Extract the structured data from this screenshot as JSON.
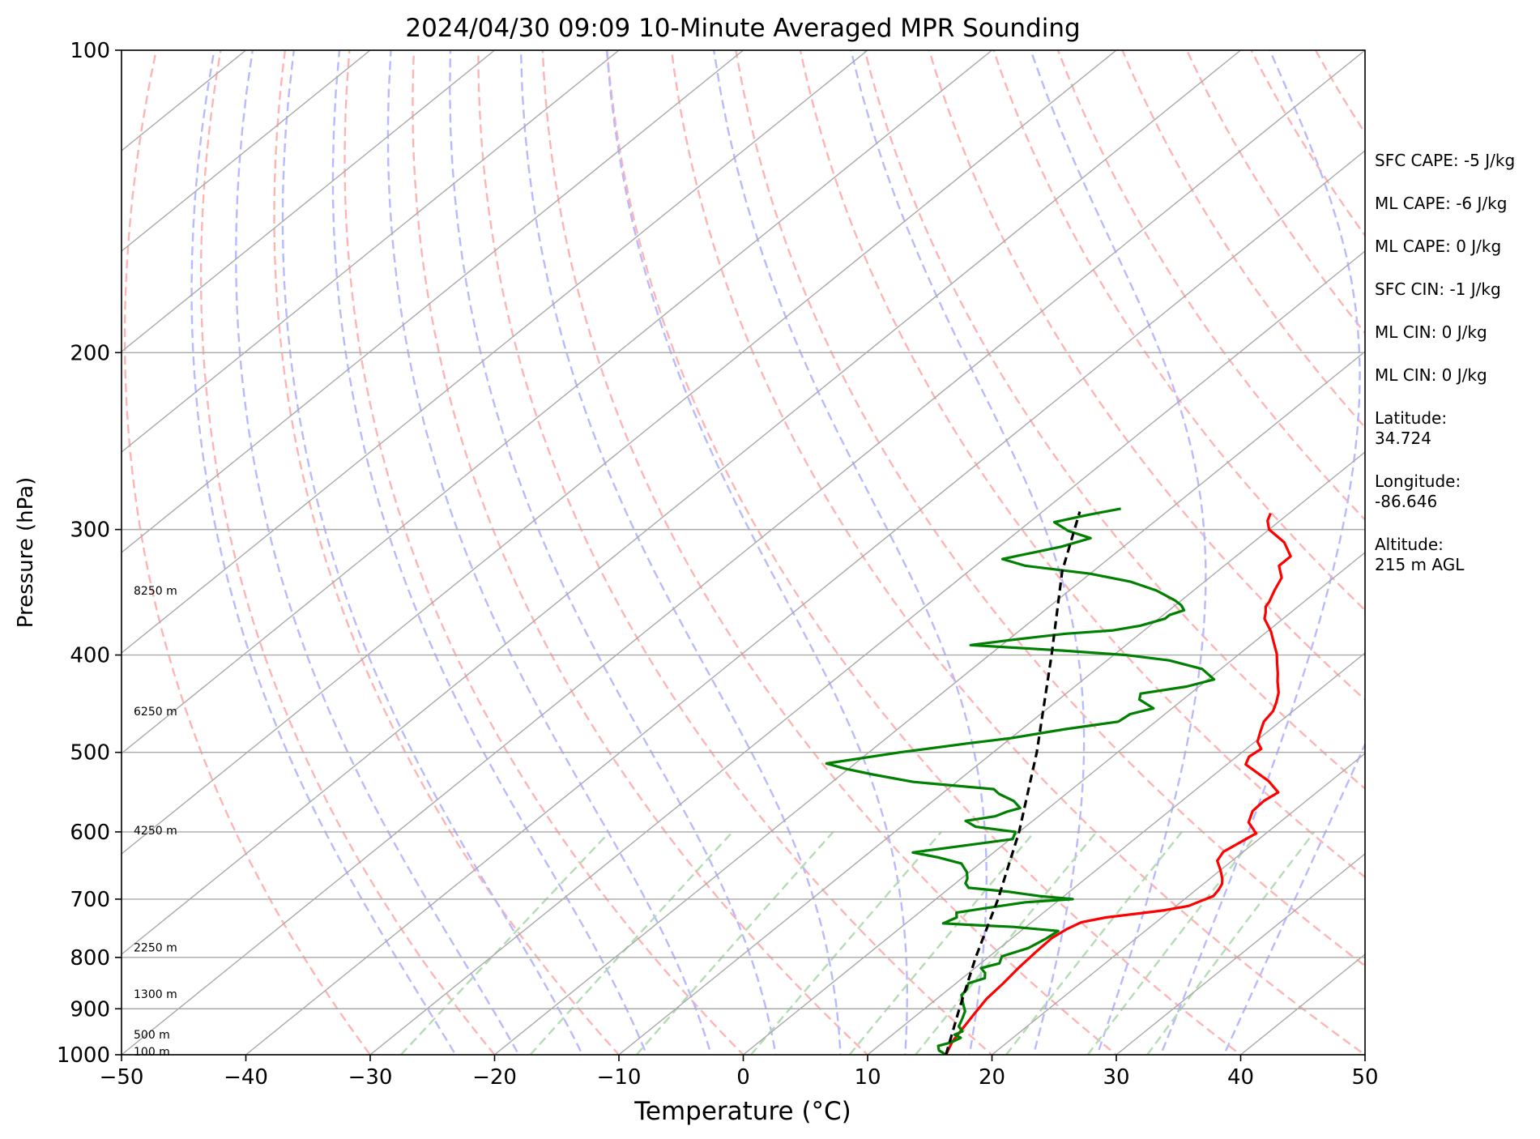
{
  "chart_data": {
    "type": "line",
    "title": "2024/04/30 09:09 10-Minute Averaged MPR Sounding",
    "xlabel": "Temperature (°C)",
    "ylabel": "Pressure (hPa)",
    "xlim": [
      -50,
      50
    ],
    "ylim": [
      1000,
      100
    ],
    "y_scale": "log",
    "skew": "skew-T",
    "grid": true,
    "x_ticks": [
      "−50",
      "−40",
      "−30",
      "−20",
      "−10",
      "0",
      "10",
      "20",
      "30",
      "40",
      "50"
    ],
    "x_tick_values": [
      -50,
      -40,
      -30,
      -20,
      -10,
      0,
      10,
      20,
      30,
      40,
      50
    ],
    "y_ticks": [
      "100",
      "200",
      "300",
      "400",
      "500",
      "600",
      "700",
      "800",
      "900",
      "1000"
    ],
    "y_tick_values": [
      100,
      200,
      300,
      400,
      500,
      600,
      700,
      800,
      900,
      1000
    ],
    "height_labels": [
      {
        "text": "8250 m",
        "p": 345
      },
      {
        "text": "6250 m",
        "p": 455
      },
      {
        "text": "4250 m",
        "p": 598
      },
      {
        "text": "2250 m",
        "p": 782
      },
      {
        "text": "1300 m",
        "p": 870
      },
      {
        "text": "500 m",
        "p": 955
      },
      {
        "text": "100 m",
        "p": 993
      }
    ],
    "series": [
      {
        "color": "#ff0000",
        "points": [
          [
            16.3,
            1000
          ],
          [
            15.5,
            970
          ],
          [
            15.0,
            940
          ],
          [
            14.5,
            910
          ],
          [
            14.0,
            880
          ],
          [
            13.8,
            850
          ],
          [
            13.5,
            820
          ],
          [
            13.3,
            790
          ],
          [
            13.2,
            765
          ],
          [
            13.5,
            750
          ],
          [
            14.0,
            738
          ],
          [
            15.5,
            730
          ],
          [
            17.5,
            724
          ],
          [
            19.5,
            718
          ],
          [
            21.0,
            711
          ],
          [
            21.5,
            703
          ],
          [
            22.0,
            695
          ],
          [
            21.8,
            685
          ],
          [
            21.5,
            676
          ],
          [
            21.0,
            668
          ],
          [
            20.0,
            655
          ],
          [
            18.8,
            641
          ],
          [
            18.4,
            628
          ],
          [
            18.8,
            615
          ],
          [
            19.2,
            602
          ],
          [
            17.5,
            587
          ],
          [
            16.7,
            572
          ],
          [
            16.6,
            559
          ],
          [
            16.9,
            548
          ],
          [
            15.0,
            534
          ],
          [
            11.5,
            514
          ],
          [
            11.0,
            505
          ],
          [
            11.2,
            496
          ],
          [
            10.2,
            488
          ],
          [
            9.5,
            478
          ],
          [
            8.7,
            466
          ],
          [
            8.4,
            455
          ],
          [
            7.8,
            446
          ],
          [
            7.0,
            436
          ],
          [
            5.8,
            425
          ],
          [
            5.0,
            417
          ],
          [
            4.0,
            408
          ],
          [
            3.0,
            399
          ],
          [
            1.8,
            390
          ],
          [
            0.3,
            379
          ],
          [
            -1.5,
            368
          ],
          [
            -2.0,
            363
          ],
          [
            -2.6,
            358
          ],
          [
            -2.8,
            354
          ],
          [
            -3.5,
            345
          ],
          [
            -4.2,
            335
          ],
          [
            -5.6,
            326
          ],
          [
            -5.6,
            319
          ],
          [
            -7.5,
            309
          ],
          [
            -10.0,
            300
          ],
          [
            -11.0,
            294
          ],
          [
            -11.5,
            289
          ]
        ]
      },
      {
        "color": "#008000",
        "points": [
          [
            16.3,
            1000
          ],
          [
            15.3,
            990
          ],
          [
            14.8,
            980
          ],
          [
            15.5,
            972
          ],
          [
            15.8,
            962
          ],
          [
            15.0,
            955
          ],
          [
            15.3,
            948
          ],
          [
            14.5,
            937
          ],
          [
            14.0,
            920
          ],
          [
            13.5,
            905
          ],
          [
            12.5,
            888
          ],
          [
            11.6,
            872
          ],
          [
            11.5,
            862
          ],
          [
            11.0,
            849
          ],
          [
            11.8,
            839
          ],
          [
            11.3,
            829
          ],
          [
            10.5,
            820
          ],
          [
            11.5,
            811
          ],
          [
            11.0,
            798
          ],
          [
            12.3,
            783
          ],
          [
            12.8,
            766
          ],
          [
            13.0,
            753
          ],
          [
            9.0,
            746
          ],
          [
            5.8,
            743
          ],
          [
            3.0,
            740
          ],
          [
            3.5,
            730
          ],
          [
            3.0,
            722
          ],
          [
            4.8,
            715
          ],
          [
            7.5,
            705
          ],
          [
            11.0,
            700
          ],
          [
            8.0,
            695
          ],
          [
            5.0,
            688
          ],
          [
            1.5,
            682
          ],
          [
            0.8,
            675
          ],
          [
            0.5,
            668
          ],
          [
            -0.2,
            658
          ],
          [
            -1.0,
            650
          ],
          [
            -1.5,
            645
          ],
          [
            -4.0,
            636
          ],
          [
            -6.5,
            629
          ],
          [
            -3.0,
            619
          ],
          [
            0.2,
            610
          ],
          [
            -0.3,
            600
          ],
          [
            -4.0,
            593
          ],
          [
            -5.4,
            585
          ],
          [
            -3.5,
            579
          ],
          [
            -3.0,
            573
          ],
          [
            -2.3,
            568
          ],
          [
            -3.5,
            559
          ],
          [
            -5.4,
            550
          ],
          [
            -6.3,
            544
          ],
          [
            -13.5,
            535
          ],
          [
            -17.5,
            526
          ],
          [
            -20.3,
            519
          ],
          [
            -22.3,
            513
          ],
          [
            -17.5,
            500
          ],
          [
            -13.0,
            490
          ],
          [
            -10.0,
            484
          ],
          [
            -6.5,
            474
          ],
          [
            -3.0,
            466
          ],
          [
            -2.8,
            458
          ],
          [
            -1.5,
            452
          ],
          [
            -3.5,
            443
          ],
          [
            -4.0,
            437
          ],
          [
            -1.0,
            430
          ],
          [
            0.5,
            423
          ],
          [
            -1.5,
            413
          ],
          [
            -5.0,
            405
          ],
          [
            -9.0,
            400
          ],
          [
            -14.5,
            396
          ],
          [
            -22.5,
            391
          ],
          [
            -19.5,
            386
          ],
          [
            -16.0,
            381
          ],
          [
            -12.5,
            378
          ],
          [
            -10.8,
            374
          ],
          [
            -9.5,
            368
          ],
          [
            -9.5,
            365
          ],
          [
            -8.8,
            361
          ],
          [
            -9.5,
            357
          ],
          [
            -10.5,
            353
          ],
          [
            -13.0,
            345
          ],
          [
            -16.0,
            338
          ],
          [
            -20.0,
            332
          ],
          [
            -26.0,
            326
          ],
          [
            -28.5,
            321
          ],
          [
            -25.0,
            312
          ],
          [
            -23.5,
            306
          ],
          [
            -26.0,
            301
          ],
          [
            -28.0,
            295
          ],
          [
            -26.0,
            290
          ],
          [
            -24.0,
            286
          ]
        ]
      },
      {
        "color": "#000000",
        "style": "dashed",
        "points": [
          [
            16.3,
            1000
          ],
          [
            12.8,
            900
          ],
          [
            9.0,
            800
          ],
          [
            5.0,
            700
          ],
          [
            0.0,
            600
          ],
          [
            -6.5,
            500
          ],
          [
            -15.0,
            400
          ],
          [
            -22.5,
            330
          ],
          [
            -27.0,
            288
          ]
        ]
      }
    ],
    "background_lines": {
      "isotherm_color": "#a9a9a9",
      "dry_adiabat_color": "#ffb4b4",
      "moist_adiabat_color": "#b9b9ff",
      "mixing_ratio_color": "#b4dcb4"
    }
  },
  "side_panel": {
    "items": [
      "SFC CAPE: -5 J/kg",
      "ML CAPE: -6 J/kg",
      "ML CAPE: 0 J/kg",
      "SFC CIN: -1 J/kg",
      "ML CIN: 0 J/kg",
      "ML CIN: 0 J/kg"
    ],
    "latitude_label": "Latitude:",
    "latitude_value": "34.724",
    "longitude_label": "Longitude:",
    "longitude_value": "-86.646",
    "altitude_label": "Altitude:",
    "altitude_value": "215 m AGL"
  }
}
